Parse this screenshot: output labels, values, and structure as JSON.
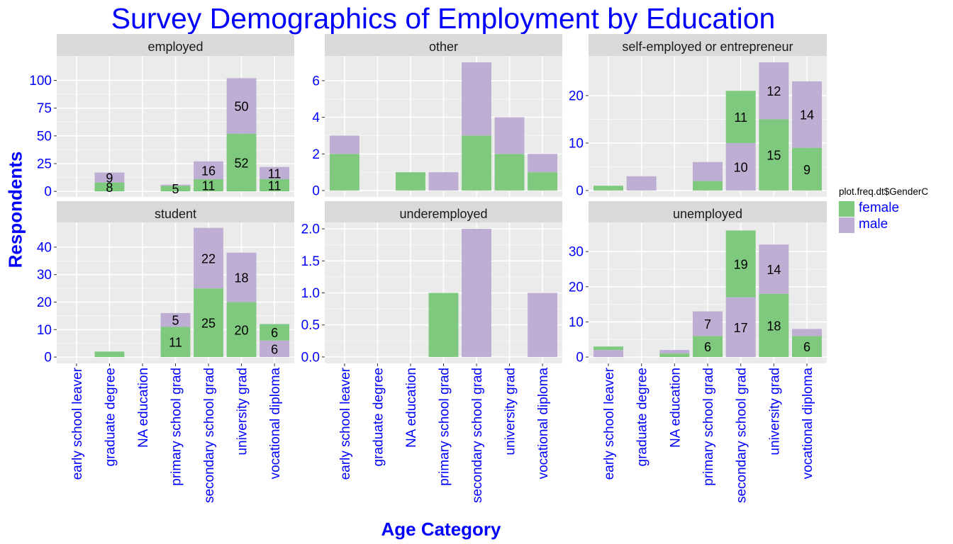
{
  "chart_data": {
    "type": "bar",
    "stacked": true,
    "faceted": true,
    "title": "Survey Demographics of Employment by Education",
    "xlabel": "Age Category",
    "ylabel": "Respondents",
    "legend": {
      "title": "plot.freq.dt$GenderC",
      "position": "right",
      "entries": [
        {
          "name": "female",
          "color": "#7fc97f"
        },
        {
          "name": "male",
          "color": "#beaed4"
        }
      ]
    },
    "categories": [
      "early school leaver",
      "graduate degree",
      "NA education",
      "primary school grad",
      "secondary school grad",
      "university grad",
      "vocational diploma"
    ],
    "grid": true,
    "facets": [
      {
        "label": "employed",
        "ylim": [
          -5,
          122
        ],
        "yticks": [
          0,
          25,
          50,
          75,
          100
        ],
        "ytick_labels": [
          "0",
          "25",
          "50",
          "75",
          "100"
        ],
        "series": [
          {
            "name": "female",
            "values": [
              0,
              8,
              0,
              5,
              11,
              52,
              11
            ]
          },
          {
            "name": "male",
            "values": [
              0,
              9,
              0,
              1,
              16,
              50,
              11
            ]
          }
        ],
        "data_labels": [
          {
            "category": 1,
            "series": "female",
            "text": "8"
          },
          {
            "category": 1,
            "series": "male",
            "text": "9"
          },
          {
            "category": 3,
            "series": "female",
            "text": "5"
          },
          {
            "category": 4,
            "series": "female",
            "text": "11"
          },
          {
            "category": 4,
            "series": "male",
            "text": "16"
          },
          {
            "category": 5,
            "series": "female",
            "text": "52"
          },
          {
            "category": 5,
            "series": "male",
            "text": "50"
          },
          {
            "category": 6,
            "series": "female",
            "text": "11"
          },
          {
            "category": 6,
            "series": "male",
            "text": "11"
          }
        ]
      },
      {
        "label": "other",
        "ylim": [
          -0.35,
          7.35
        ],
        "yticks": [
          0,
          2,
          4,
          6
        ],
        "ytick_labels": [
          "0",
          "2",
          "4",
          "6"
        ],
        "series": [
          {
            "name": "female",
            "values": [
              2,
              0,
              1,
              0,
              3,
              2,
              1
            ]
          },
          {
            "name": "male",
            "values": [
              1,
              0,
              0,
              1,
              4,
              2,
              1
            ]
          }
        ],
        "data_labels": []
      },
      {
        "label": "self-employed or entrepreneur",
        "ylim": [
          -1.35,
          28.35
        ],
        "yticks": [
          0,
          10,
          20
        ],
        "ytick_labels": [
          "0",
          "10",
          "20"
        ],
        "series": [
          {
            "name": "female",
            "values": [
              1,
              0,
              0,
              2,
              11,
              15,
              9
            ]
          },
          {
            "name": "male",
            "values": [
              0,
              3,
              0,
              4,
              10,
              12,
              14
            ]
          }
        ],
        "data_labels": [
          {
            "category": 4,
            "series": "male",
            "text": "10"
          },
          {
            "category": 4,
            "series": "female",
            "text": "11"
          },
          {
            "category": 5,
            "series": "female",
            "text": "15"
          },
          {
            "category": 5,
            "series": "male",
            "text": "12"
          },
          {
            "category": 6,
            "series": "female",
            "text": "9"
          },
          {
            "category": 6,
            "series": "male",
            "text": "14"
          }
        ]
      },
      {
        "label": "student",
        "ylim": [
          -2.3,
          49
        ],
        "yticks": [
          0,
          10,
          20,
          30,
          40
        ],
        "ytick_labels": [
          "0",
          "10",
          "20",
          "30",
          "40"
        ],
        "series": [
          {
            "name": "female",
            "values": [
              0,
              2,
              0,
              11,
              25,
              20,
              6
            ]
          },
          {
            "name": "male",
            "values": [
              0,
              0,
              0,
              5,
              22,
              18,
              6
            ]
          }
        ],
        "data_labels": [
          {
            "category": 3,
            "series": "female",
            "text": "11"
          },
          {
            "category": 3,
            "series": "male",
            "text": "5"
          },
          {
            "category": 4,
            "series": "female",
            "text": "25"
          },
          {
            "category": 4,
            "series": "male",
            "text": "22"
          },
          {
            "category": 5,
            "series": "female",
            "text": "20"
          },
          {
            "category": 5,
            "series": "male",
            "text": "18"
          },
          {
            "category": 6,
            "series": "male",
            "text": "6"
          },
          {
            "category": 6,
            "series": "female",
            "text": "6"
          }
        ]
      },
      {
        "label": "underemployed",
        "ylim": [
          -0.1,
          2.1
        ],
        "yticks": [
          0,
          0.5,
          1,
          1.5,
          2
        ],
        "ytick_labels": [
          "0.0",
          "0.5",
          "1.0",
          "1.5",
          "2.0"
        ],
        "series": [
          {
            "name": "female",
            "values": [
              0,
              0,
              0,
              1,
              0,
              0,
              0
            ]
          },
          {
            "name": "male",
            "values": [
              0,
              0,
              0,
              0,
              2,
              0,
              1
            ]
          }
        ],
        "data_labels": []
      },
      {
        "label": "unemployed",
        "ylim": [
          -1.8,
          38.3
        ],
        "yticks": [
          0,
          10,
          20,
          30
        ],
        "ytick_labels": [
          "0",
          "10",
          "20",
          "30"
        ],
        "series": [
          {
            "name": "female",
            "values": [
              1,
              0,
              1,
              6,
              19,
              18,
              6
            ]
          },
          {
            "name": "male",
            "values": [
              2,
              0,
              1,
              7,
              17,
              14,
              2
            ]
          }
        ],
        "data_labels": [
          {
            "category": 3,
            "series": "female",
            "text": "6"
          },
          {
            "category": 3,
            "series": "male",
            "text": "7"
          },
          {
            "category": 4,
            "series": "male",
            "text": "17"
          },
          {
            "category": 4,
            "series": "female",
            "text": "19"
          },
          {
            "category": 5,
            "series": "female",
            "text": "18"
          },
          {
            "category": 5,
            "series": "male",
            "text": "14"
          },
          {
            "category": 6,
            "series": "female",
            "text": "6"
          }
        ]
      }
    ]
  }
}
